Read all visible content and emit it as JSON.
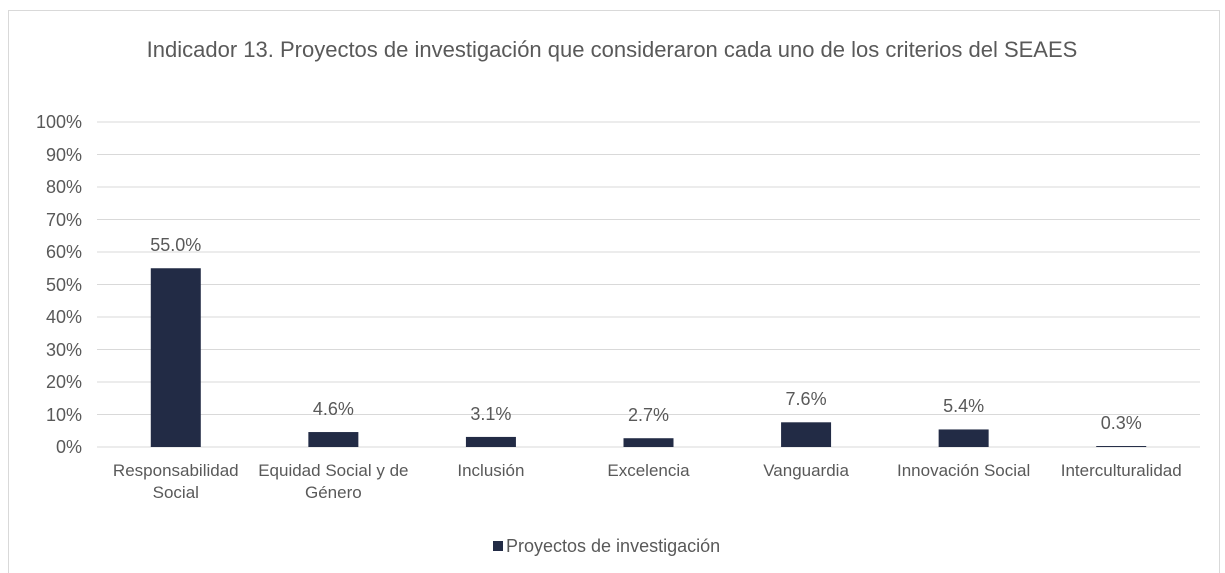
{
  "chart_data": {
    "type": "bar",
    "title": "Indicador 13. Proyectos de investigación que consideraron cada uno de los criterios del SEAES",
    "categories": [
      "Responsabilidad Social",
      "Equidad Social y de Género",
      "Inclusión",
      "Excelencia",
      "Vanguardia",
      "Innovación Social",
      "Interculturalidad"
    ],
    "series": [
      {
        "name": "Proyectos de investigación",
        "color": "#222b45",
        "values": [
          55.0,
          4.6,
          3.1,
          2.7,
          7.6,
          5.4,
          0.3
        ],
        "value_labels": [
          "55.0%",
          "4.6%",
          "3.1%",
          "2.7%",
          "7.6%",
          "5.4%",
          "0.3%"
        ]
      }
    ],
    "ylim": [
      0,
      100
    ],
    "yticks": [
      {
        "value": 0,
        "label": "0%"
      },
      {
        "value": 10,
        "label": "10%"
      },
      {
        "value": 20,
        "label": "20%"
      },
      {
        "value": 30,
        "label": "30%"
      },
      {
        "value": 40,
        "label": "40%"
      },
      {
        "value": 50,
        "label": "50%"
      },
      {
        "value": 60,
        "label": "60%"
      },
      {
        "value": 70,
        "label": "70%"
      },
      {
        "value": 80,
        "label": "80%"
      },
      {
        "value": 90,
        "label": "90%"
      },
      {
        "value": 100,
        "label": "100%"
      }
    ],
    "grid": true,
    "legend": "bottom"
  }
}
